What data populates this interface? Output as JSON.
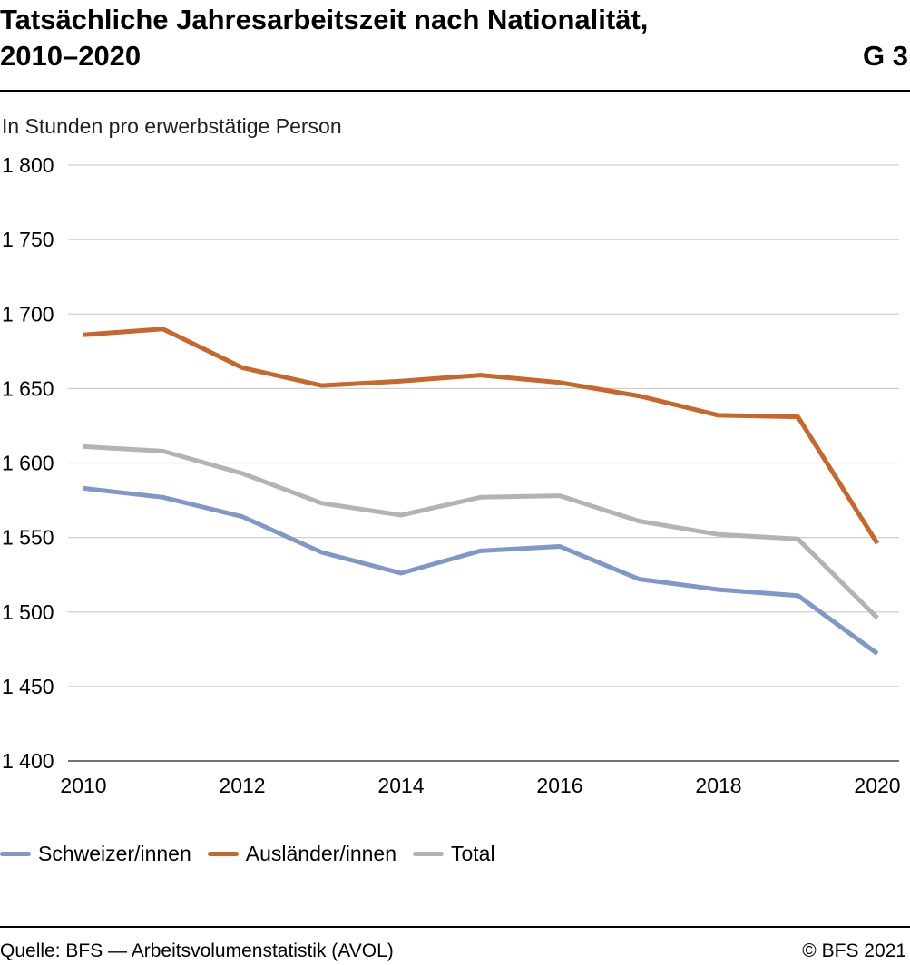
{
  "header": {
    "title_line1": "Tatsächliche Jahresarbeitszeit nach Nationalität,",
    "title_line2": "2010–2020",
    "code": "G 3"
  },
  "chart_data": {
    "type": "line",
    "title": "Tatsächliche Jahresarbeitszeit nach Nationalität, 2010–2020",
    "ylabel": "In Stunden pro erwerbstätige Person",
    "xlabel": "",
    "x": [
      2010,
      2011,
      2012,
      2013,
      2014,
      2015,
      2016,
      2017,
      2018,
      2019,
      2020
    ],
    "x_tick_labels": [
      "2010",
      "2012",
      "2014",
      "2016",
      "2018",
      "2020"
    ],
    "y_tick_labels": [
      "1 400",
      "1 450",
      "1 500",
      "1 550",
      "1 600",
      "1 650",
      "1 700",
      "1 750",
      "1 800"
    ],
    "ylim": [
      1400,
      1800
    ],
    "grid": true,
    "legend_position": "bottom",
    "series": [
      {
        "name": "Schweizer/innen",
        "color": "#8097c9",
        "values": [
          1583,
          1577,
          1564,
          1540,
          1526,
          1541,
          1544,
          1522,
          1515,
          1511,
          1472
        ]
      },
      {
        "name": "Ausländer/innen",
        "color": "#c8662b",
        "values": [
          1686,
          1690,
          1664,
          1652,
          1655,
          1659,
          1654,
          1645,
          1632,
          1631,
          1546
        ]
      },
      {
        "name": "Total",
        "color": "#b3b3b3",
        "values": [
          1611,
          1608,
          1593,
          1573,
          1565,
          1577,
          1578,
          1561,
          1552,
          1549,
          1496
        ]
      }
    ]
  },
  "footer": {
    "source": "Quelle: BFS — Arbeitsvolumenstatistik (AVOL)",
    "copyright": "© BFS 2021"
  }
}
